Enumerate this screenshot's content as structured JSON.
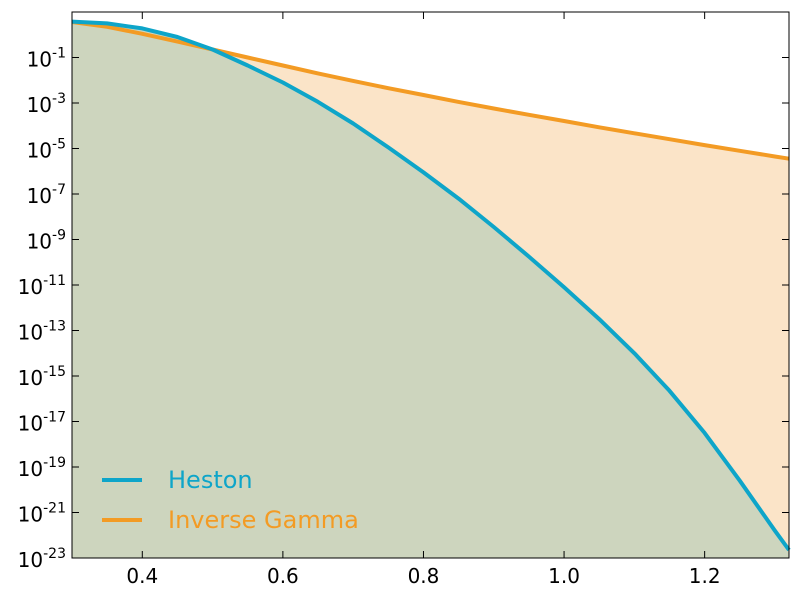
{
  "chart_data": {
    "type": "line",
    "title": "",
    "xlabel": "",
    "ylabel": "",
    "yscale": "log",
    "xlim": [
      0.3,
      1.32
    ],
    "ylim_exponent": [
      -23,
      1
    ],
    "x_ticks": [
      {
        "value": 0.4,
        "label": "0.4"
      },
      {
        "value": 0.6,
        "label": "0.6"
      },
      {
        "value": 0.8,
        "label": "0.8"
      },
      {
        "value": 1.0,
        "label": "1.0"
      },
      {
        "value": 1.2,
        "label": "1.2"
      }
    ],
    "y_ticks": [
      {
        "exp": -23,
        "base": "10",
        "sup": "-23"
      },
      {
        "exp": -21,
        "base": "10",
        "sup": "-21"
      },
      {
        "exp": -19,
        "base": "10",
        "sup": "-19"
      },
      {
        "exp": -17,
        "base": "10",
        "sup": "-17"
      },
      {
        "exp": -15,
        "base": "10",
        "sup": "-15"
      },
      {
        "exp": -13,
        "base": "10",
        "sup": "-13"
      },
      {
        "exp": -11,
        "base": "10",
        "sup": "-11"
      },
      {
        "exp": -9,
        "base": "10",
        "sup": "-9"
      },
      {
        "exp": -7,
        "base": "10",
        "sup": "-7"
      },
      {
        "exp": -5,
        "base": "10",
        "sup": "-5"
      },
      {
        "exp": -3,
        "base": "10",
        "sup": "-3"
      },
      {
        "exp": -1,
        "base": "10",
        "sup": "-1"
      }
    ],
    "grid": false,
    "legend_position": "lower-left",
    "series": [
      {
        "name": "Heston",
        "color": "#0ea5c9",
        "fill_color": "#cdd5be",
        "x": [
          0.3,
          0.35,
          0.4,
          0.45,
          0.5,
          0.55,
          0.6,
          0.65,
          0.7,
          0.75,
          0.8,
          0.85,
          0.9,
          0.95,
          1.0,
          1.05,
          1.1,
          1.15,
          1.2,
          1.25,
          1.3,
          1.32
        ],
        "log10_y": [
          0.58,
          0.5,
          0.28,
          -0.1,
          -0.65,
          -1.35,
          -2.1,
          -2.95,
          -3.9,
          -4.95,
          -6.05,
          -7.2,
          -8.45,
          -9.75,
          -11.1,
          -12.5,
          -14.0,
          -15.65,
          -17.5,
          -19.6,
          -21.8,
          -22.65
        ]
      },
      {
        "name": "Inverse Gamma",
        "color": "#f39b24",
        "fill_color": "#fbe4c8",
        "x": [
          0.3,
          0.35,
          0.4,
          0.45,
          0.5,
          0.55,
          0.6,
          0.65,
          0.7,
          0.75,
          0.8,
          0.85,
          0.9,
          0.95,
          1.0,
          1.05,
          1.1,
          1.15,
          1.2,
          1.25,
          1.3,
          1.32
        ],
        "log10_y": [
          0.56,
          0.35,
          0.04,
          -0.3,
          -0.65,
          -1.0,
          -1.35,
          -1.7,
          -2.03,
          -2.35,
          -2.65,
          -2.95,
          -3.24,
          -3.52,
          -3.79,
          -4.07,
          -4.33,
          -4.59,
          -4.85,
          -5.1,
          -5.35,
          -5.45
        ]
      }
    ]
  }
}
